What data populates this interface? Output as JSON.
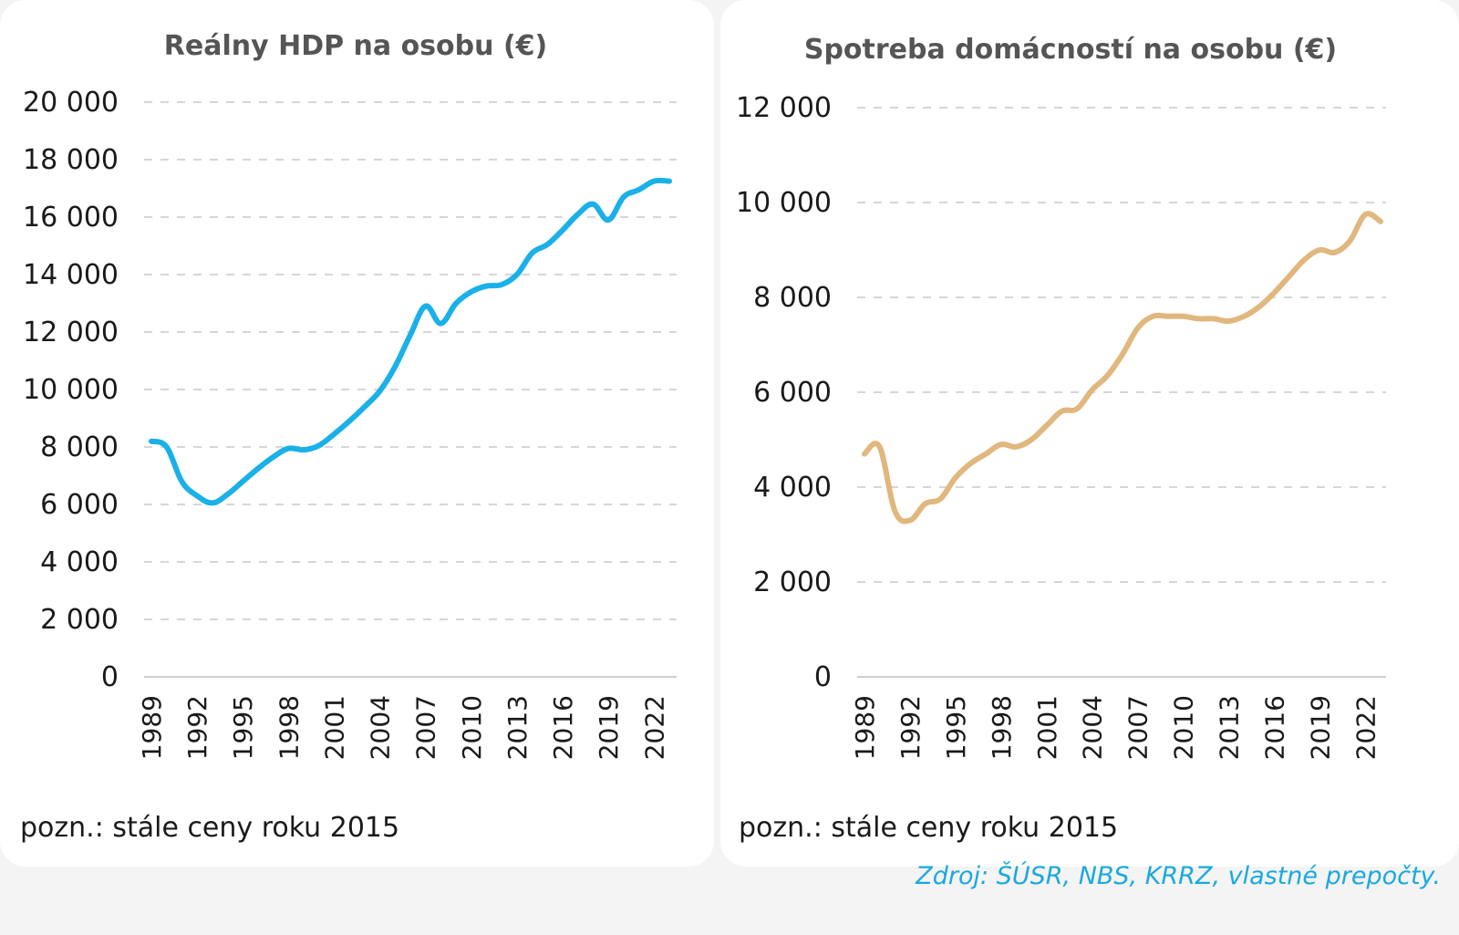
{
  "charts": [
    {
      "title": "Reálny HDP na osobu (€)",
      "note": "pozn.: stále ceny roku 2015"
    },
    {
      "title": "Spotreba domácností na osobu (€)",
      "note": "pozn.: stále ceny roku 2015"
    }
  ],
  "source": "Zdroj: ŠÚSR, NBS, KRRZ, vlastné prepočty.",
  "chart_data": [
    {
      "type": "line",
      "title": "Reálny HDP na osobu (€)",
      "xlabel": "",
      "ylabel": "",
      "ylim": [
        0,
        20000
      ],
      "yticks": [
        0,
        2000,
        4000,
        6000,
        8000,
        10000,
        12000,
        14000,
        16000,
        18000,
        20000
      ],
      "ytick_labels": [
        "0",
        "2 000",
        "4 000",
        "6 000",
        "8 000",
        "10 000",
        "12 000",
        "14 000",
        "16 000",
        "18 000",
        "20 000"
      ],
      "xtick_labels": [
        "1989",
        "1992",
        "1995",
        "1998",
        "2001",
        "2004",
        "2007",
        "2010",
        "2013",
        "2016",
        "2019",
        "2022"
      ],
      "grid": "horizontal dashed",
      "color": "#1ab0e8",
      "x": [
        1989,
        1990,
        1991,
        1992,
        1993,
        1994,
        1995,
        1996,
        1997,
        1998,
        1999,
        2000,
        2001,
        2002,
        2003,
        2004,
        2005,
        2006,
        2007,
        2008,
        2009,
        2010,
        2011,
        2012,
        2013,
        2014,
        2015,
        2016,
        2017,
        2018,
        2019,
        2020,
        2021,
        2022,
        2023
      ],
      "values": [
        8200,
        8000,
        6800,
        6300,
        6050,
        6350,
        6800,
        7250,
        7650,
        7950,
        7900,
        8050,
        8450,
        8900,
        9400,
        9950,
        10800,
        11900,
        12900,
        12300,
        13000,
        13400,
        13600,
        13650,
        14000,
        14750,
        15050,
        15550,
        16100,
        16450,
        15900,
        16700,
        16950,
        17250,
        17250
      ]
    },
    {
      "type": "line",
      "title": "Spotreba domácností na osobu (€)",
      "xlabel": "",
      "ylabel": "",
      "ylim": [
        0,
        12000
      ],
      "yticks": [
        0,
        2000,
        4000,
        6000,
        8000,
        10000,
        12000
      ],
      "ytick_labels": [
        "0",
        "2 000",
        "4 000",
        "6 000",
        "8 000",
        "10 000",
        "12 000"
      ],
      "xtick_labels": [
        "1989",
        "1992",
        "1995",
        "1998",
        "2001",
        "2004",
        "2007",
        "2010",
        "2013",
        "2016",
        "2019",
        "2022"
      ],
      "grid": "horizontal dashed",
      "color": "#e0b77c",
      "x": [
        1989,
        1990,
        1991,
        1992,
        1993,
        1994,
        1995,
        1996,
        1997,
        1998,
        1999,
        2000,
        2001,
        2002,
        2003,
        2004,
        2005,
        2006,
        2007,
        2008,
        2009,
        2010,
        2011,
        2012,
        2013,
        2014,
        2015,
        2016,
        2017,
        2018,
        2019,
        2020,
        2021,
        2022,
        2023
      ],
      "values": [
        4700,
        4850,
        3500,
        3300,
        3650,
        3750,
        4200,
        4500,
        4700,
        4900,
        4850,
        5000,
        5300,
        5600,
        5650,
        6050,
        6350,
        6800,
        7350,
        7600,
        7600,
        7600,
        7550,
        7550,
        7500,
        7600,
        7800,
        8100,
        8450,
        8800,
        9000,
        8950,
        9200,
        9750,
        9600
      ]
    }
  ]
}
